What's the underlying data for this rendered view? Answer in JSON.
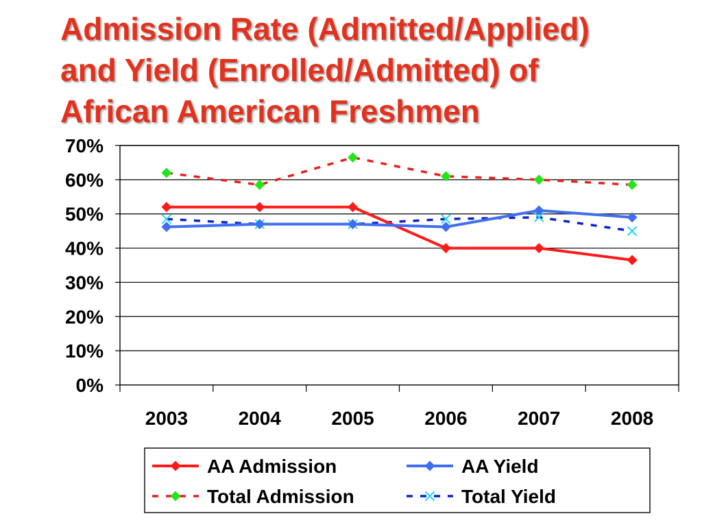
{
  "title": {
    "lines": [
      "Admission Rate (Admitted/Applied)",
      "and Yield (Enrolled/Admitted) of",
      "African American Freshmen"
    ]
  },
  "chart_data": {
    "type": "line",
    "title": "Admission Rate (Admitted/Applied) and Yield (Enrolled/Admitted) of African American Freshmen",
    "categories": [
      "2003",
      "2004",
      "2005",
      "2006",
      "2007",
      "2008"
    ],
    "yticks": [
      "0%",
      "10%",
      "20%",
      "30%",
      "40%",
      "50%",
      "60%",
      "70%"
    ],
    "ylim": [
      0,
      70
    ],
    "grid": true,
    "legend_position": "bottom",
    "series": [
      {
        "name": "AA Admission",
        "values": [
          52,
          52,
          52,
          40,
          40,
          36.5
        ],
        "color": "#ff1a1a",
        "dash": "solid",
        "marker": "diamond",
        "marker_color": "#ff1a1a"
      },
      {
        "name": "AA Yield",
        "values": [
          46.2,
          47,
          47,
          46.2,
          51,
          49
        ],
        "color": "#3f6ff0",
        "dash": "solid",
        "marker": "diamond",
        "marker_color": "#3f6ff0"
      },
      {
        "name": "Total Admission",
        "values": [
          62,
          58.5,
          66.5,
          61,
          60,
          58.5
        ],
        "color": "#e8201e",
        "dash": "dashed",
        "marker": "diamond",
        "marker_color": "#22e61a"
      },
      {
        "name": "Total Yield",
        "values": [
          48.5,
          47,
          47,
          48.5,
          49,
          45
        ],
        "color": "#0a22c8",
        "dash": "dashed",
        "marker": "x",
        "marker_color": "#22d6f0"
      }
    ]
  }
}
